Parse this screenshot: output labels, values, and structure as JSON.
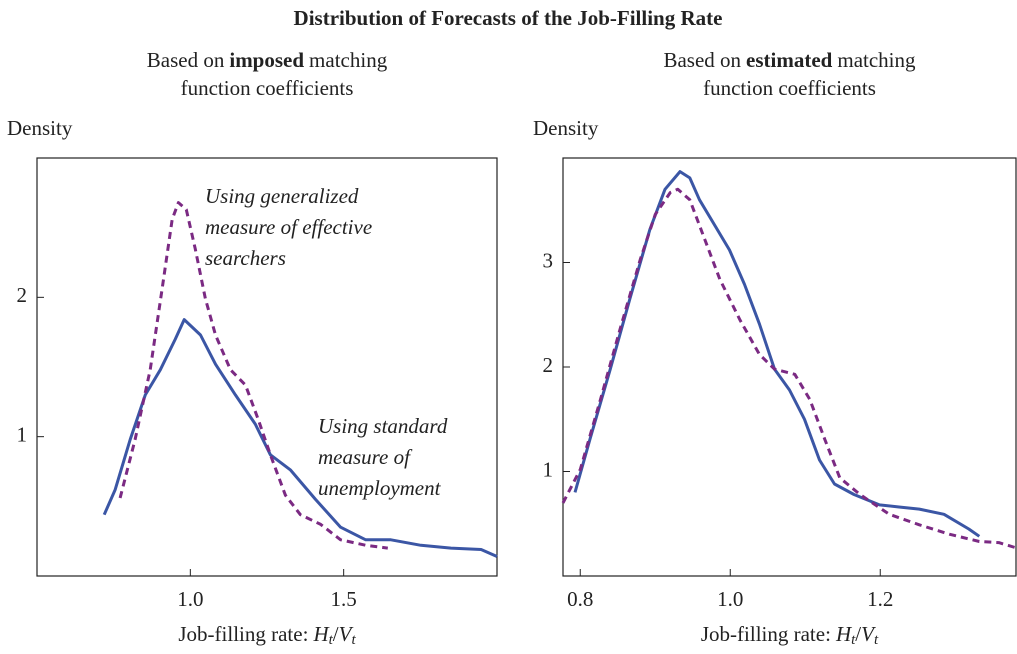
{
  "title": "Distribution of Forecasts of the Job-Filling Rate",
  "chart_data": [
    {
      "type": "line",
      "subtitle": {
        "prefix": "Based on",
        "emphasis": "imposed",
        "suffix": "matching",
        "line2": "function coefficients"
      },
      "ylabel": "Density",
      "xlabel": {
        "text": "Job-filling rate:",
        "numerator": "H",
        "num_sub": "t",
        "sep": "/",
        "denominator": "V",
        "den_sub": "t"
      },
      "annotations": [
        [
          "Using generalized",
          "measure of effective",
          "searchers"
        ],
        [
          "Using standard",
          "measure of",
          "unemployment"
        ]
      ],
      "xlim": [
        0.5,
        2.0
      ],
      "ylim": [
        0,
        3
      ],
      "xticks": [
        {
          "value": 1.0,
          "label": "1.0"
        },
        {
          "value": 1.5,
          "label": "1.5"
        }
      ],
      "yticks": [
        1,
        2
      ],
      "series": [
        {
          "color": "#3b56a5",
          "style": "solid",
          "x": [
            0.719,
            0.755,
            0.804,
            0.853,
            0.902,
            0.951,
            0.98,
            1.033,
            1.082,
            1.147,
            1.212,
            1.261,
            1.327,
            1.408,
            1.49,
            1.572,
            1.654,
            1.752,
            1.85,
            1.948,
            2.0
          ],
          "values": [
            0.44,
            0.62,
            0.98,
            1.3,
            1.48,
            1.7,
            1.84,
            1.73,
            1.52,
            1.3,
            1.09,
            0.87,
            0.76,
            0.55,
            0.35,
            0.26,
            0.26,
            0.22,
            0.2,
            0.19,
            0.14
          ]
        },
        {
          "color": "#7b2a83",
          "style": "dashed",
          "x": [
            0.771,
            0.82,
            0.869,
            0.908,
            0.941,
            0.961,
            0.987,
            1.016,
            1.049,
            1.082,
            1.131,
            1.18,
            1.222,
            1.261,
            1.31,
            1.359,
            1.425,
            1.49,
            1.572,
            1.644
          ],
          "values": [
            0.56,
            0.98,
            1.48,
            2.06,
            2.56,
            2.68,
            2.63,
            2.35,
            1.99,
            1.73,
            1.48,
            1.37,
            1.12,
            0.87,
            0.58,
            0.44,
            0.37,
            0.26,
            0.22,
            0.2
          ]
        }
      ]
    },
    {
      "type": "line",
      "subtitle": {
        "prefix": "Based on",
        "emphasis": "estimated",
        "suffix": "matching",
        "line2": "function coefficients"
      },
      "ylabel": "Density",
      "xlabel": {
        "text": "Job-filling rate:",
        "numerator": "H",
        "num_sub": "t",
        "sep": "/",
        "denominator": "V",
        "den_sub": "t"
      },
      "annotations": [],
      "xlim": [
        0.777,
        1.381
      ],
      "ylim": [
        0,
        4
      ],
      "xticks": [
        {
          "value": 0.8,
          "label": "0.8"
        },
        {
          "value": 1.0,
          "label": "1.0"
        },
        {
          "value": 1.2,
          "label": "1.2"
        }
      ],
      "yticks": [
        1,
        2,
        3
      ],
      "series": [
        {
          "color": "#3b56a5",
          "style": "solid",
          "x": [
            0.793,
            0.813,
            0.84,
            0.866,
            0.893,
            0.913,
            0.933,
            0.946,
            0.959,
            0.979,
            0.999,
            1.019,
            1.039,
            1.059,
            1.079,
            1.099,
            1.119,
            1.139,
            1.165,
            1.199,
            1.225,
            1.252,
            1.285,
            1.318,
            1.332
          ],
          "values": [
            0.8,
            1.31,
            1.98,
            2.65,
            3.32,
            3.7,
            3.87,
            3.81,
            3.6,
            3.36,
            3.12,
            2.79,
            2.41,
            1.98,
            1.78,
            1.5,
            1.11,
            0.88,
            0.78,
            0.68,
            0.66,
            0.64,
            0.59,
            0.45,
            0.38
          ]
        },
        {
          "color": "#7b2a83",
          "style": "dashed",
          "x": [
            0.777,
            0.8,
            0.827,
            0.853,
            0.88,
            0.9,
            0.92,
            0.93,
            0.946,
            0.966,
            0.986,
            1.013,
            1.039,
            1.059,
            1.086,
            1.106,
            1.126,
            1.146,
            1.173,
            1.212,
            1.252,
            1.292,
            1.332,
            1.358,
            1.381
          ],
          "values": [
            0.7,
            1.02,
            1.69,
            2.36,
            3.03,
            3.46,
            3.67,
            3.7,
            3.6,
            3.22,
            2.84,
            2.45,
            2.12,
            1.98,
            1.93,
            1.69,
            1.31,
            0.94,
            0.78,
            0.59,
            0.49,
            0.4,
            0.33,
            0.32,
            0.27
          ]
        }
      ]
    }
  ]
}
